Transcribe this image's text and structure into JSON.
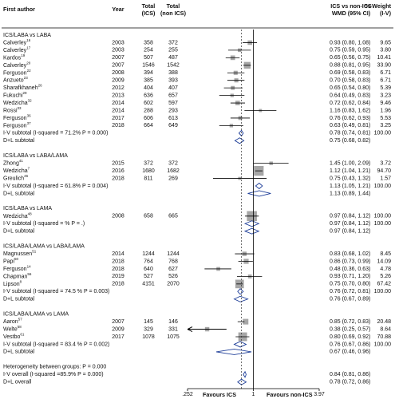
{
  "chart_data": {
    "type": "forest",
    "columns": {
      "author": "First author",
      "year": "Year",
      "n_ics": [
        "Total",
        "(ICS)"
      ],
      "n_non": [
        "Total",
        "(non ICS)"
      ],
      "effect": [
        "ICS vs non-ICS",
        "WMD (95% CI)"
      ],
      "weight": [
        "% Weight",
        "(I-V)"
      ]
    },
    "xlim": [
      0.252,
      3.97
    ],
    "log_scale": true,
    "xticks": [
      {
        "value": 0.252,
        "label": ".252"
      },
      1,
      3.97
    ],
    "xlabels": [
      "Favours ICS",
      "Favours non-ICS"
    ],
    "square_color": "#a6a6a6",
    "diamond_color": "#1f3f99",
    "groups": [
      {
        "name": "ICS/LABA vs LABA",
        "studies": [
          {
            "author": "Calverley",
            "ref": "16",
            "year": "2003",
            "n_ics": 358,
            "n_non": 372,
            "est": 0.93,
            "lo": 0.8,
            "hi": 1.08,
            "label": "0.93 (0.80, 1.08)",
            "weight": 9.65,
            "weight_label": "9.65"
          },
          {
            "author": "Calverley",
            "ref": "17",
            "year": "2003",
            "n_ics": 254,
            "n_non": 255,
            "est": 0.75,
            "lo": 0.59,
            "hi": 0.95,
            "label": "0.75 (0.59, 0.95)",
            "weight": 3.8,
            "weight_label": "3.80"
          },
          {
            "author": "Kardos",
            "ref": "19",
            "year": "2007",
            "n_ics": 507,
            "n_non": 487,
            "est": 0.65,
            "lo": 0.56,
            "hi": 0.75,
            "label": "0.65 (0.56, 0.75)",
            "weight": 10.41,
            "weight_label": "10.41"
          },
          {
            "author": "Calverley",
            "ref": "20",
            "year": "2007",
            "n_ics": 1546,
            "n_non": 1542,
            "est": 0.88,
            "lo": 0.81,
            "hi": 0.95,
            "label": "0.88 (0.81, 0.95)",
            "weight": 33.9,
            "weight_label": "33.90"
          },
          {
            "author": "Ferguson",
            "ref": "22",
            "year": "2008",
            "n_ics": 394,
            "n_non": 388,
            "est": 0.69,
            "lo": 0.58,
            "hi": 0.83,
            "label": "0.69 (0.58, 0.83)",
            "weight": 6.71,
            "weight_label": "6.71"
          },
          {
            "author": "Anzueto",
            "ref": "23",
            "year": "2009",
            "n_ics": 385,
            "n_non": 393,
            "est": 0.7,
            "lo": 0.58,
            "hi": 0.83,
            "label": "0.70 (0.58, 0.83)",
            "weight": 6.71,
            "weight_label": "6.71"
          },
          {
            "author": "Sharafkhaneh",
            "ref": "26",
            "year": "2012",
            "n_ics": 404,
            "n_non": 407,
            "est": 0.65,
            "lo": 0.54,
            "hi": 0.8,
            "label": "0.65 (0.54, 0.80)",
            "weight": 5.39,
            "weight_label": "5.39"
          },
          {
            "author": "Fukuchi",
            "ref": "29",
            "year": "2013",
            "n_ics": 636,
            "n_non": 657,
            "est": 0.64,
            "lo": 0.49,
            "hi": 0.83,
            "label": "0.64 (0.49, 0.83)",
            "weight": 3.23,
            "weight_label": "3.23"
          },
          {
            "author": "Wedzicha",
            "ref": "32",
            "year": "2014",
            "n_ics": 602,
            "n_non": 597,
            "est": 0.72,
            "lo": 0.62,
            "hi": 0.84,
            "label": "0.72 (0.62, 0.84)",
            "weight": 9.46,
            "weight_label": "9.46"
          },
          {
            "author": "Rossi",
            "ref": "33",
            "year": "2014",
            "n_ics": 288,
            "n_non": 293,
            "est": 1.16,
            "lo": 0.83,
            "hi": 1.62,
            "label": "1.16 (0.83, 1.62)",
            "weight": 1.96,
            "weight_label": "1.96"
          },
          {
            "author": "Ferguson",
            "ref": "36",
            "year": "2017",
            "n_ics": 606,
            "n_non": 613,
            "est": 0.76,
            "lo": 0.62,
            "hi": 0.93,
            "label": "0.76 (0.62, 0.93)",
            "weight": 5.53,
            "weight_label": "5.53"
          },
          {
            "author": "Ferguson",
            "ref": "37",
            "year": "2018",
            "n_ics": 664,
            "n_non": 649,
            "est": 0.63,
            "lo": 0.49,
            "hi": 0.81,
            "label": "0.63 (0.49, 0.81)",
            "weight": 3.25,
            "weight_label": "3.25"
          }
        ],
        "iv": {
          "label": "I-V subtotal (I-squared = 71.2% P = 0.000)",
          "est": 0.78,
          "lo": 0.74,
          "hi": 0.81,
          "ci_label": "0.78 (0.74, 0.81)",
          "weight": 100,
          "weight_label": "100.00"
        },
        "dl": {
          "label": "D+L subtotal",
          "est": 0.75,
          "lo": 0.68,
          "hi": 0.82,
          "ci_label": "0.75 (0.68, 0.82)"
        }
      },
      {
        "name": "ICS/LABA vs LABA/LAMA",
        "studies": [
          {
            "author": "Zhong",
            "ref": "41",
            "year": "2015",
            "n_ics": 372,
            "n_non": 372,
            "est": 1.45,
            "lo": 1.0,
            "hi": 2.09,
            "label": "1.45 (1.00, 2.09)",
            "weight": 3.72,
            "weight_label": "3.72"
          },
          {
            "author": "Wedzicha",
            "ref": "7",
            "year": "2016",
            "n_ics": 1680,
            "n_non": 1682,
            "est": 1.12,
            "lo": 1.04,
            "hi": 1.21,
            "label": "1.12 (1.04, 1.21)",
            "weight": 94.7,
            "weight_label": "94.70"
          },
          {
            "author": "Greulich",
            "ref": "46",
            "year": "2018",
            "n_ics": 811,
            "n_non": 269,
            "est": 0.75,
            "lo": 0.43,
            "hi": 1.32,
            "label": "0.75 (0.43, 1.32)",
            "weight": 1.57,
            "weight_label": "1.57"
          }
        ],
        "iv": {
          "label": "I-V subtotal (I-squared = 61.8% P = 0.004)",
          "est": 1.13,
          "lo": 1.05,
          "hi": 1.21,
          "ci_label": "1.13 (1.05, 1.21)",
          "weight": 100,
          "weight_label": "100.00"
        },
        "dl": {
          "label": "D+L subtotal",
          "est": 1.13,
          "lo": 0.89,
          "hi": 1.44,
          "ci_label": "1.13 (0.89, 1.44)"
        }
      },
      {
        "name": "ICS/LABA vs LAMA",
        "studies": [
          {
            "author": "Wedzicha",
            "ref": "48",
            "year": "2008",
            "n_ics": 658,
            "n_non": 665,
            "est": 0.97,
            "lo": 0.84,
            "hi": 1.12,
            "label": "0.97 (0.84, 1.12)",
            "weight": 100,
            "weight_label": "100.00"
          }
        ],
        "iv": {
          "label": "I-V subtotal (I-squared = % P = .)",
          "est": 0.97,
          "lo": 0.84,
          "hi": 1.12,
          "ci_label": "0.97 (0.84, 1.12)",
          "weight": 100,
          "weight_label": "100.00"
        },
        "dl": {
          "label": "D+L subtotal",
          "est": 0.97,
          "lo": 0.84,
          "hi": 1.12,
          "ci_label": "0.97 (0.84, 1.12)"
        }
      },
      {
        "name": "ICS/LABA/LAMA vs LABA/LAMA",
        "studies": [
          {
            "author": "Magnussen",
            "ref": "51",
            "year": "2014",
            "n_ics": 1244,
            "n_non": 1244,
            "est": 0.83,
            "lo": 0.68,
            "hi": 1.02,
            "label": "0.83 (0.68, 1.02)",
            "weight": 8.45,
            "weight_label": "8.45"
          },
          {
            "author": "Papi",
            "ref": "50",
            "year": "2018",
            "n_ics": 764,
            "n_non": 768,
            "est": 0.86,
            "lo": 0.73,
            "hi": 0.99,
            "label": "0.86 (0.73, 0.99)",
            "weight": 14.09,
            "weight_label": "14.09"
          },
          {
            "author": "Ferguson",
            "ref": "14",
            "year": "2018",
            "n_ics": 640,
            "n_non": 627,
            "est": 0.48,
            "lo": 0.36,
            "hi": 0.63,
            "label": "0.48 (0.36, 0.63)",
            "weight": 4.78,
            "weight_label": "4.78"
          },
          {
            "author": "Chapman",
            "ref": "56",
            "year": "2019",
            "n_ics": 527,
            "n_non": 526,
            "est": 0.93,
            "lo": 0.71,
            "hi": 1.2,
            "label": "0.93 (0.71, 1.20)",
            "weight": 5.26,
            "weight_label": "5.26"
          },
          {
            "author": "Lipson",
            "ref": "8",
            "year": "2018",
            "n_ics": 4151,
            "n_non": 2070,
            "est": 0.75,
            "lo": 0.7,
            "hi": 0.8,
            "label": "0.75 (0.70, 0.80)",
            "weight": 67.42,
            "weight_label": "67.42"
          }
        ],
        "iv": {
          "label": "I-V subtotal (I-squared = 74.5 % P = 0.003)",
          "est": 0.76,
          "lo": 0.72,
          "hi": 0.81,
          "ci_label": "0.76 (0.72, 0.81)",
          "weight": 100,
          "weight_label": "100.00"
        },
        "dl": {
          "label": "D+L subtotal",
          "est": 0.76,
          "lo": 0.67,
          "hi": 0.89,
          "ci_label": "0.76 (0.67, 0.89)"
        }
      },
      {
        "name": "ICS/LABA/LAMA vs LAMA",
        "studies": [
          {
            "author": "Aaron",
            "ref": "57",
            "year": "2007",
            "n_ics": 145,
            "n_non": 146,
            "est": 0.85,
            "lo": 0.72,
            "hi": 0.83,
            "label": "0.85 (0.72, 0.83)",
            "weight": 20.48,
            "weight_label": "20.48"
          },
          {
            "author": "Welte",
            "ref": "58",
            "year": "2009",
            "n_ics": 329,
            "n_non": 331,
            "est": 0.38,
            "lo": 0.25,
            "hi": 0.57,
            "label": "0.38 (0.25, 0.57)",
            "weight": 8.64,
            "weight_label": "8.64"
          },
          {
            "author": "Vestbo",
            "ref": "61",
            "year": "2017",
            "n_ics": 1078,
            "n_non": 1075,
            "est": 0.8,
            "lo": 0.69,
            "hi": 0.92,
            "label": "0.80 (0.69, 0.92)",
            "weight": 70.88,
            "weight_label": "70.88"
          }
        ],
        "iv": {
          "label": "I-V subtotal (I-squared = 83.4 % P = 0.002)",
          "est": 0.76,
          "lo": 0.67,
          "hi": 0.86,
          "ci_label": "0.76 (0.67, 0.86)",
          "weight": 100,
          "weight_label": "100.00"
        },
        "dl": {
          "label": "D+L subtotal",
          "est": 0.67,
          "lo": 0.46,
          "hi": 0.96,
          "ci_label": "0.67 (0.46, 0.96)"
        }
      }
    ],
    "heterogeneity": "Heterogeneity between groups: P = 0.000",
    "overall_iv": {
      "label": "I-V overall (I-squared =85.9% P = 0.000)",
      "est": 0.84,
      "lo": 0.81,
      "hi": 0.86,
      "ci_label": "0.84 (0.81, 0.86)"
    },
    "overall_dl": {
      "label": "D+L overall",
      "est": 0.78,
      "lo": 0.72,
      "hi": 0.86,
      "ci_label": "0.78 (0.72, 0.86)"
    }
  }
}
